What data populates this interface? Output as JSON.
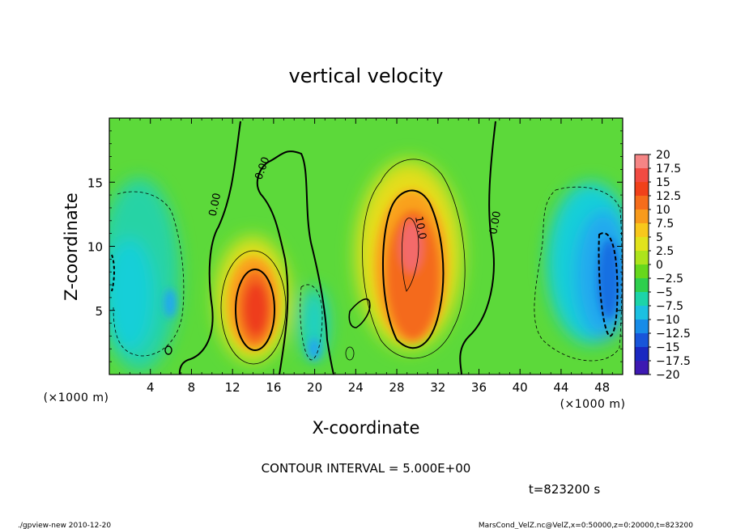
{
  "chart_data": {
    "type": "heatmap",
    "title": "vertical velocity",
    "xlabel": "X-coordinate",
    "ylabel": "Z-coordinate",
    "x_unit_left": "(×1000 m)",
    "x_unit_right": "(×1000 m)",
    "xlim": [
      0,
      50
    ],
    "ylim": [
      0,
      20
    ],
    "x_ticks": [
      4,
      8,
      12,
      16,
      20,
      24,
      28,
      32,
      36,
      40,
      44,
      48
    ],
    "x_tick_labels": [
      "4",
      "8",
      "12",
      "16",
      "20",
      "24",
      "28",
      "32",
      "36",
      "40",
      "44",
      "48"
    ],
    "y_ticks": [
      5,
      10,
      15
    ],
    "y_tick_labels": [
      "5",
      "10",
      "15"
    ],
    "contour_labels": [
      {
        "text": "0.00",
        "x": 10.6,
        "y": 13.2,
        "rotate": -78
      },
      {
        "text": "0.00",
        "x": 15.2,
        "y": 16.0,
        "rotate": -70
      },
      {
        "text": "10.0",
        "x": 30.0,
        "y": 11.4,
        "rotate": 80
      },
      {
        "text": "0.00",
        "x": 37.9,
        "y": 11.8,
        "rotate": -80
      }
    ],
    "colorbar": {
      "levels": [
        20,
        17.5,
        15,
        12.5,
        10,
        7.5,
        5,
        2.5,
        0,
        -2.5,
        -5,
        -7.5,
        -10,
        -12.5,
        -15,
        -17.5,
        -20
      ],
      "labels": [
        "20",
        "17.5",
        "15",
        "12.5",
        "10",
        "7.5",
        "5",
        "2.5",
        "0",
        "−2.5",
        "−5",
        "−7.5",
        "−10",
        "−12.5",
        "−15",
        "−17.5",
        "−20"
      ],
      "colors": [
        "#f6a0a0",
        "#f36a6a",
        "#ee2c1a",
        "#f3561a",
        "#f7841c",
        "#f9b21c",
        "#f6de1c",
        "#cbe81c",
        "#8ee01c",
        "#3fcf1c",
        "#1ccf7e",
        "#1cd8d3",
        "#19a8ee",
        "#1570e2",
        "#1a3ad2",
        "#1a16b0",
        "#5f1bb4"
      ]
    },
    "features": [
      {
        "kind": "updraft",
        "x": 14,
        "y": 5,
        "peak": 17.5
      },
      {
        "kind": "updraft",
        "x": 29,
        "y": 9,
        "peak": 17.5
      },
      {
        "kind": "downdraft",
        "x": 48,
        "y": 7,
        "peak": -12.5
      },
      {
        "kind": "downdraft",
        "x": 1,
        "y": 7,
        "peak": -7.5
      },
      {
        "kind": "downdraft",
        "x": 20,
        "y": 2.5,
        "peak": -10
      }
    ],
    "contour_interval_text": "CONTOUR INTERVAL = 5.000E+00",
    "time_text": "t=823200 s"
  },
  "footer": {
    "left": "./gpview-new  2010-12-20",
    "right": "MarsCond_VelZ.nc@VelZ,x=0:50000,z=0:20000,t=823200"
  }
}
